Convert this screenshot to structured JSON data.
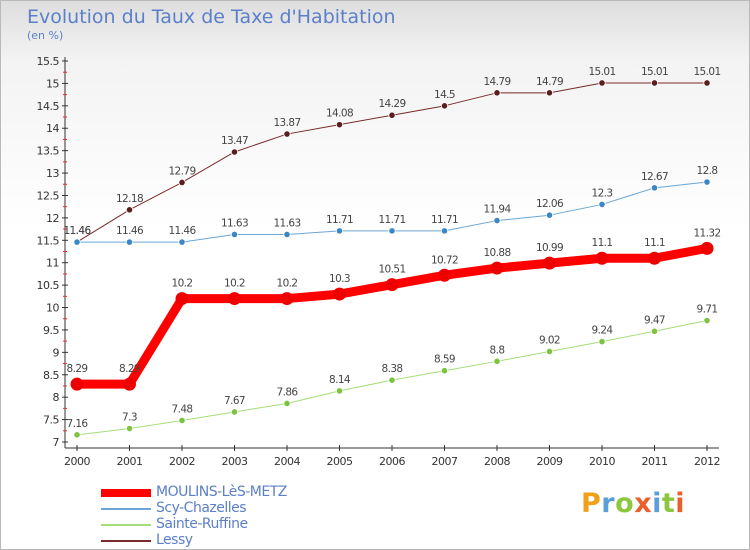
{
  "header": {
    "title": "Evolution du Taux de Taxe d'Habitation",
    "subtitle": "(en %)"
  },
  "logo": {
    "text": "Proxiti",
    "colors": [
      "#f2a01a",
      "#5a9fd8",
      "#8dc63f",
      "#e8612c",
      "#5a9fd8",
      "#8dc63f",
      "#e8612c"
    ]
  },
  "colors": {
    "axis": "#333333",
    "tick_text": "#333333",
    "value_text": "#444444",
    "title": "#5b7fc9"
  },
  "chart_data": {
    "type": "line",
    "title": "Evolution du Taux de Taxe d'Habitation",
    "subtitle": "(en %)",
    "x": [
      "2000",
      "2001",
      "2002",
      "2003",
      "2004",
      "2005",
      "2006",
      "2007",
      "2008",
      "2009",
      "2010",
      "2011",
      "2012"
    ],
    "ylim": [
      7,
      15.5
    ],
    "yticks": [
      "7",
      "7.5",
      "8",
      "8.5",
      "9",
      "9.5",
      "10",
      "10.5",
      "11",
      "11.5",
      "12",
      "12.5",
      "13",
      "13.5",
      "14",
      "14.5",
      "15",
      "15.5"
    ],
    "grid": false,
    "legend_position": "bottom-left",
    "series": [
      {
        "name": "Lessy",
        "color": "#7a2a2a",
        "marker": "#5a1e1e",
        "width": 1,
        "values": [
          11.46,
          12.18,
          12.79,
          13.47,
          13.87,
          14.08,
          14.29,
          14.5,
          14.79,
          14.79,
          15.01,
          15.01,
          15.01
        ],
        "labels": [
          "11.46",
          "12.18",
          "12.79",
          "13.47",
          "13.87",
          "14.08",
          "14.29",
          "14.5",
          "14.79",
          "14.79",
          "15.01",
          "15.01",
          "15.01"
        ]
      },
      {
        "name": "Scy-Chazelles",
        "color": "#6aa6d6",
        "marker": "#3a86c6",
        "width": 1,
        "values": [
          11.46,
          11.46,
          11.46,
          11.63,
          11.63,
          11.71,
          11.71,
          11.71,
          11.94,
          12.06,
          12.3,
          12.67,
          12.8
        ],
        "labels": [
          "11.46",
          "11.46",
          "11.46",
          "11.63",
          "11.63",
          "11.71",
          "11.71",
          "11.71",
          "11.94",
          "12.06",
          "12.3",
          "12.67",
          "12.8"
        ]
      },
      {
        "name": "Sainte-Ruffine",
        "color": "#a6dd7a",
        "marker": "#7cc340",
        "width": 1,
        "values": [
          7.16,
          7.3,
          7.48,
          7.67,
          7.86,
          8.14,
          8.38,
          8.59,
          8.8,
          9.02,
          9.24,
          9.47,
          9.71
        ],
        "labels": [
          "7.16",
          "7.3",
          "7.48",
          "7.67",
          "7.86",
          "8.14",
          "8.38",
          "8.59",
          "8.8",
          "9.02",
          "9.24",
          "9.47",
          "9.71"
        ]
      },
      {
        "name": "MOULINS-LèS-METZ",
        "color": "#ff0000",
        "marker": "#ee0000",
        "width": 9,
        "values": [
          8.29,
          8.29,
          10.2,
          10.2,
          10.2,
          10.3,
          10.51,
          10.72,
          10.88,
          10.99,
          11.1,
          11.1,
          11.32
        ],
        "labels": [
          "8.29",
          "8.29",
          "10.2",
          "10.2",
          "10.2",
          "10.3",
          "10.51",
          "10.72",
          "10.88",
          "10.99",
          "11.1",
          "11.1",
          "11.32"
        ]
      }
    ],
    "legend": [
      {
        "name": "MOULINS-LèS-METZ",
        "color": "#ff0000",
        "thick": 8
      },
      {
        "name": "Scy-Chazelles",
        "color": "#6aa6d6",
        "thick": 2
      },
      {
        "name": "Sainte-Ruffine",
        "color": "#a6dd7a",
        "thick": 2
      },
      {
        "name": "Lessy",
        "color": "#7a2a2a",
        "thick": 2
      }
    ]
  }
}
